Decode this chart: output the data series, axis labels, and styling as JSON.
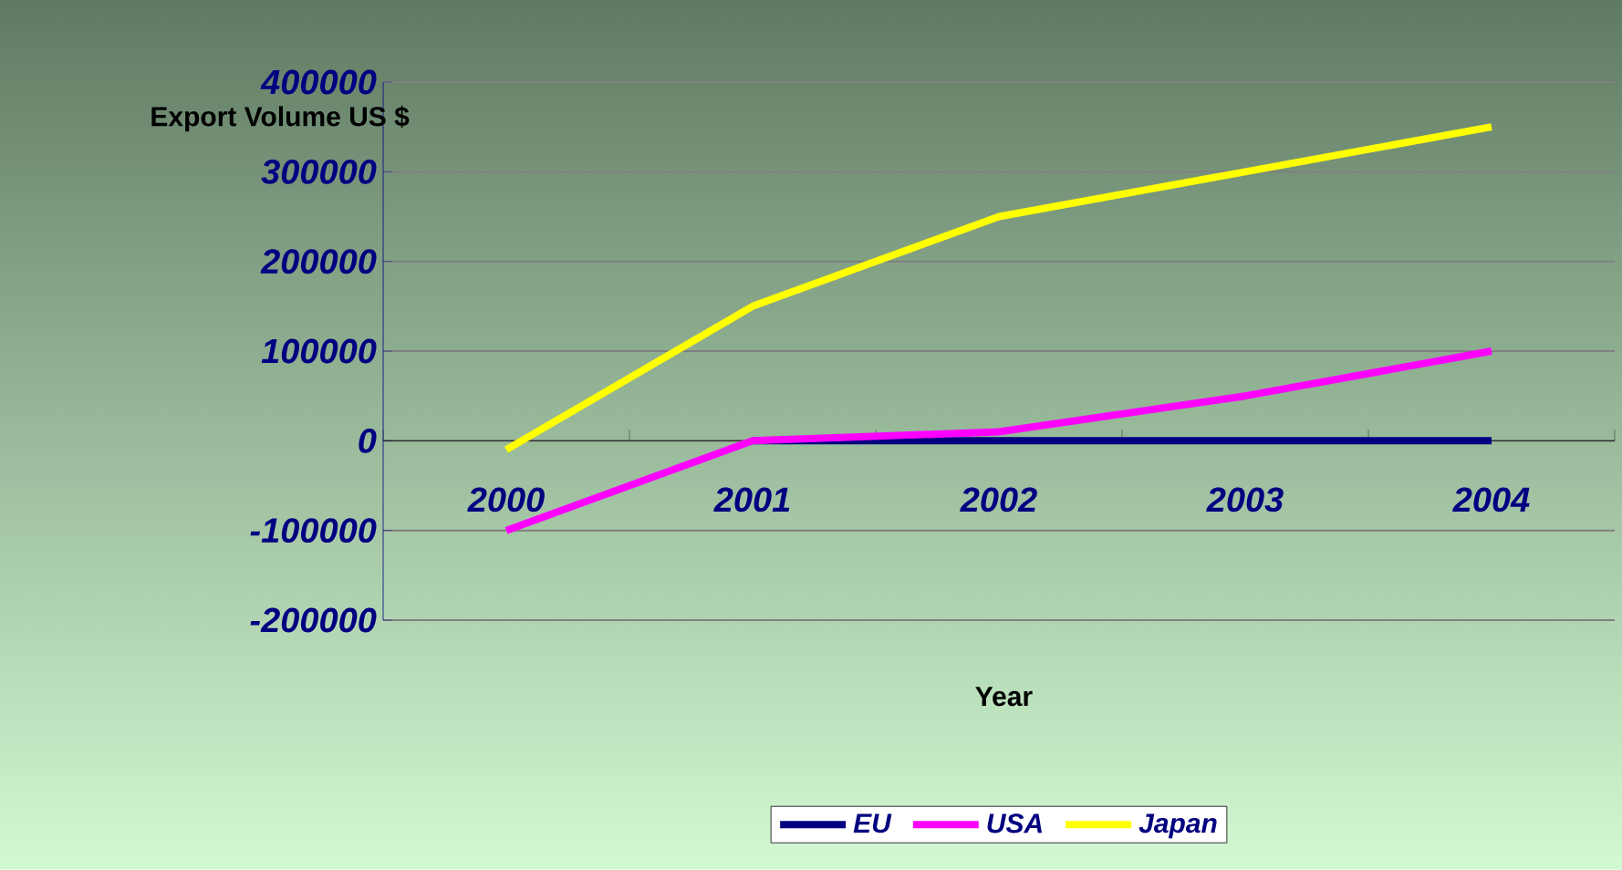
{
  "chart_data": {
    "type": "line",
    "xlabel": "Year",
    "ylabel": "Export Volume US $",
    "categories": [
      "2000",
      "2001",
      "2002",
      "2003",
      "2004"
    ],
    "series": [
      {
        "name": "EU",
        "color": "#000080",
        "values": [
          null,
          0,
          0,
          0,
          0
        ]
      },
      {
        "name": "USA",
        "color": "#ff00ff",
        "values": [
          -100000,
          0,
          10000,
          50000,
          100000
        ]
      },
      {
        "name": "Japan",
        "color": "#ffff00",
        "values": [
          -10000,
          150000,
          250000,
          300000,
          350000
        ]
      }
    ],
    "ylim": [
      -200000,
      400000
    ],
    "yticks": [
      -200000,
      -100000,
      0,
      100000,
      200000,
      300000,
      400000
    ],
    "grid": "y",
    "legend": "bottom"
  }
}
